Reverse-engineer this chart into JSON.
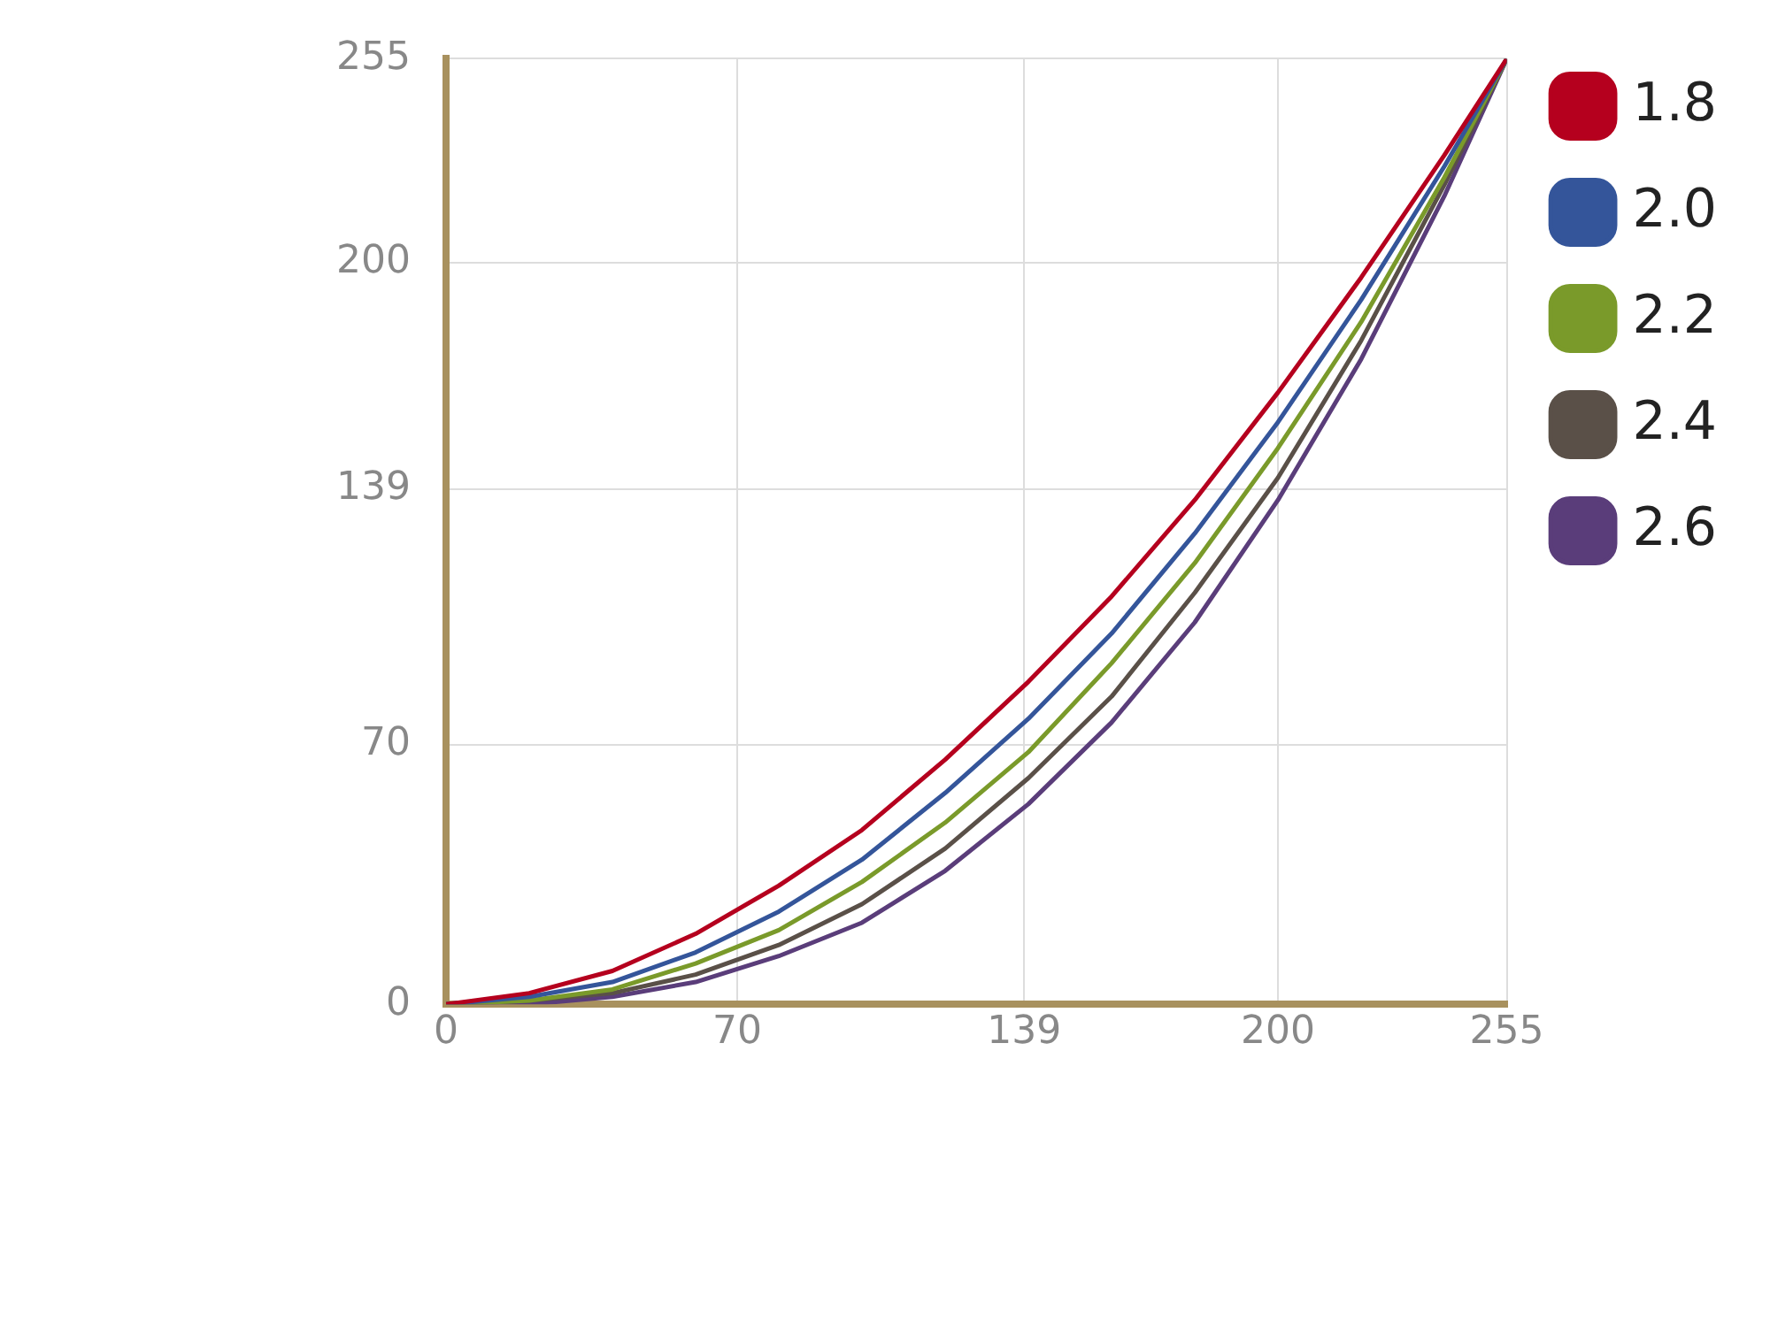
{
  "chart_data": {
    "type": "line",
    "x": [
      0,
      20,
      40,
      60,
      80,
      100,
      120,
      140,
      160,
      180,
      200,
      220,
      240,
      255
    ],
    "series": [
      {
        "name": "1.8",
        "color": "#b5001e",
        "values": [
          0,
          3,
          9,
          19,
          32,
          47,
          66,
          87,
          110,
          136,
          165,
          196,
          229,
          255
        ]
      },
      {
        "name": "2.0",
        "color": "#34559a",
        "values": [
          0,
          2,
          6,
          14,
          25,
          39,
          57,
          77,
          100,
          127,
          157,
          190,
          226,
          255
        ]
      },
      {
        "name": "2.2",
        "color": "#7a9a2a",
        "values": [
          0,
          1,
          4,
          11,
          20,
          33,
          49,
          68,
          92,
          119,
          150,
          184,
          223,
          255
        ]
      },
      {
        "name": "2.4",
        "color": "#5a5048",
        "values": [
          0,
          1,
          3,
          8,
          16,
          27,
          42,
          61,
          83,
          111,
          142,
          179,
          221,
          255
        ]
      },
      {
        "name": "2.6",
        "color": "#5a3d7a",
        "values": [
          0,
          0,
          2,
          6,
          13,
          22,
          36,
          54,
          76,
          103,
          136,
          174,
          218,
          255
        ]
      }
    ],
    "xlim": [
      0,
      255
    ],
    "xticks": [
      0,
      70,
      139,
      200,
      255
    ],
    "ylim": [
      0,
      255
    ],
    "yticks": [
      0,
      70,
      139,
      200,
      255
    ],
    "grid": true,
    "legend": "top right",
    "marker": "none",
    "line_style": "solid"
  }
}
